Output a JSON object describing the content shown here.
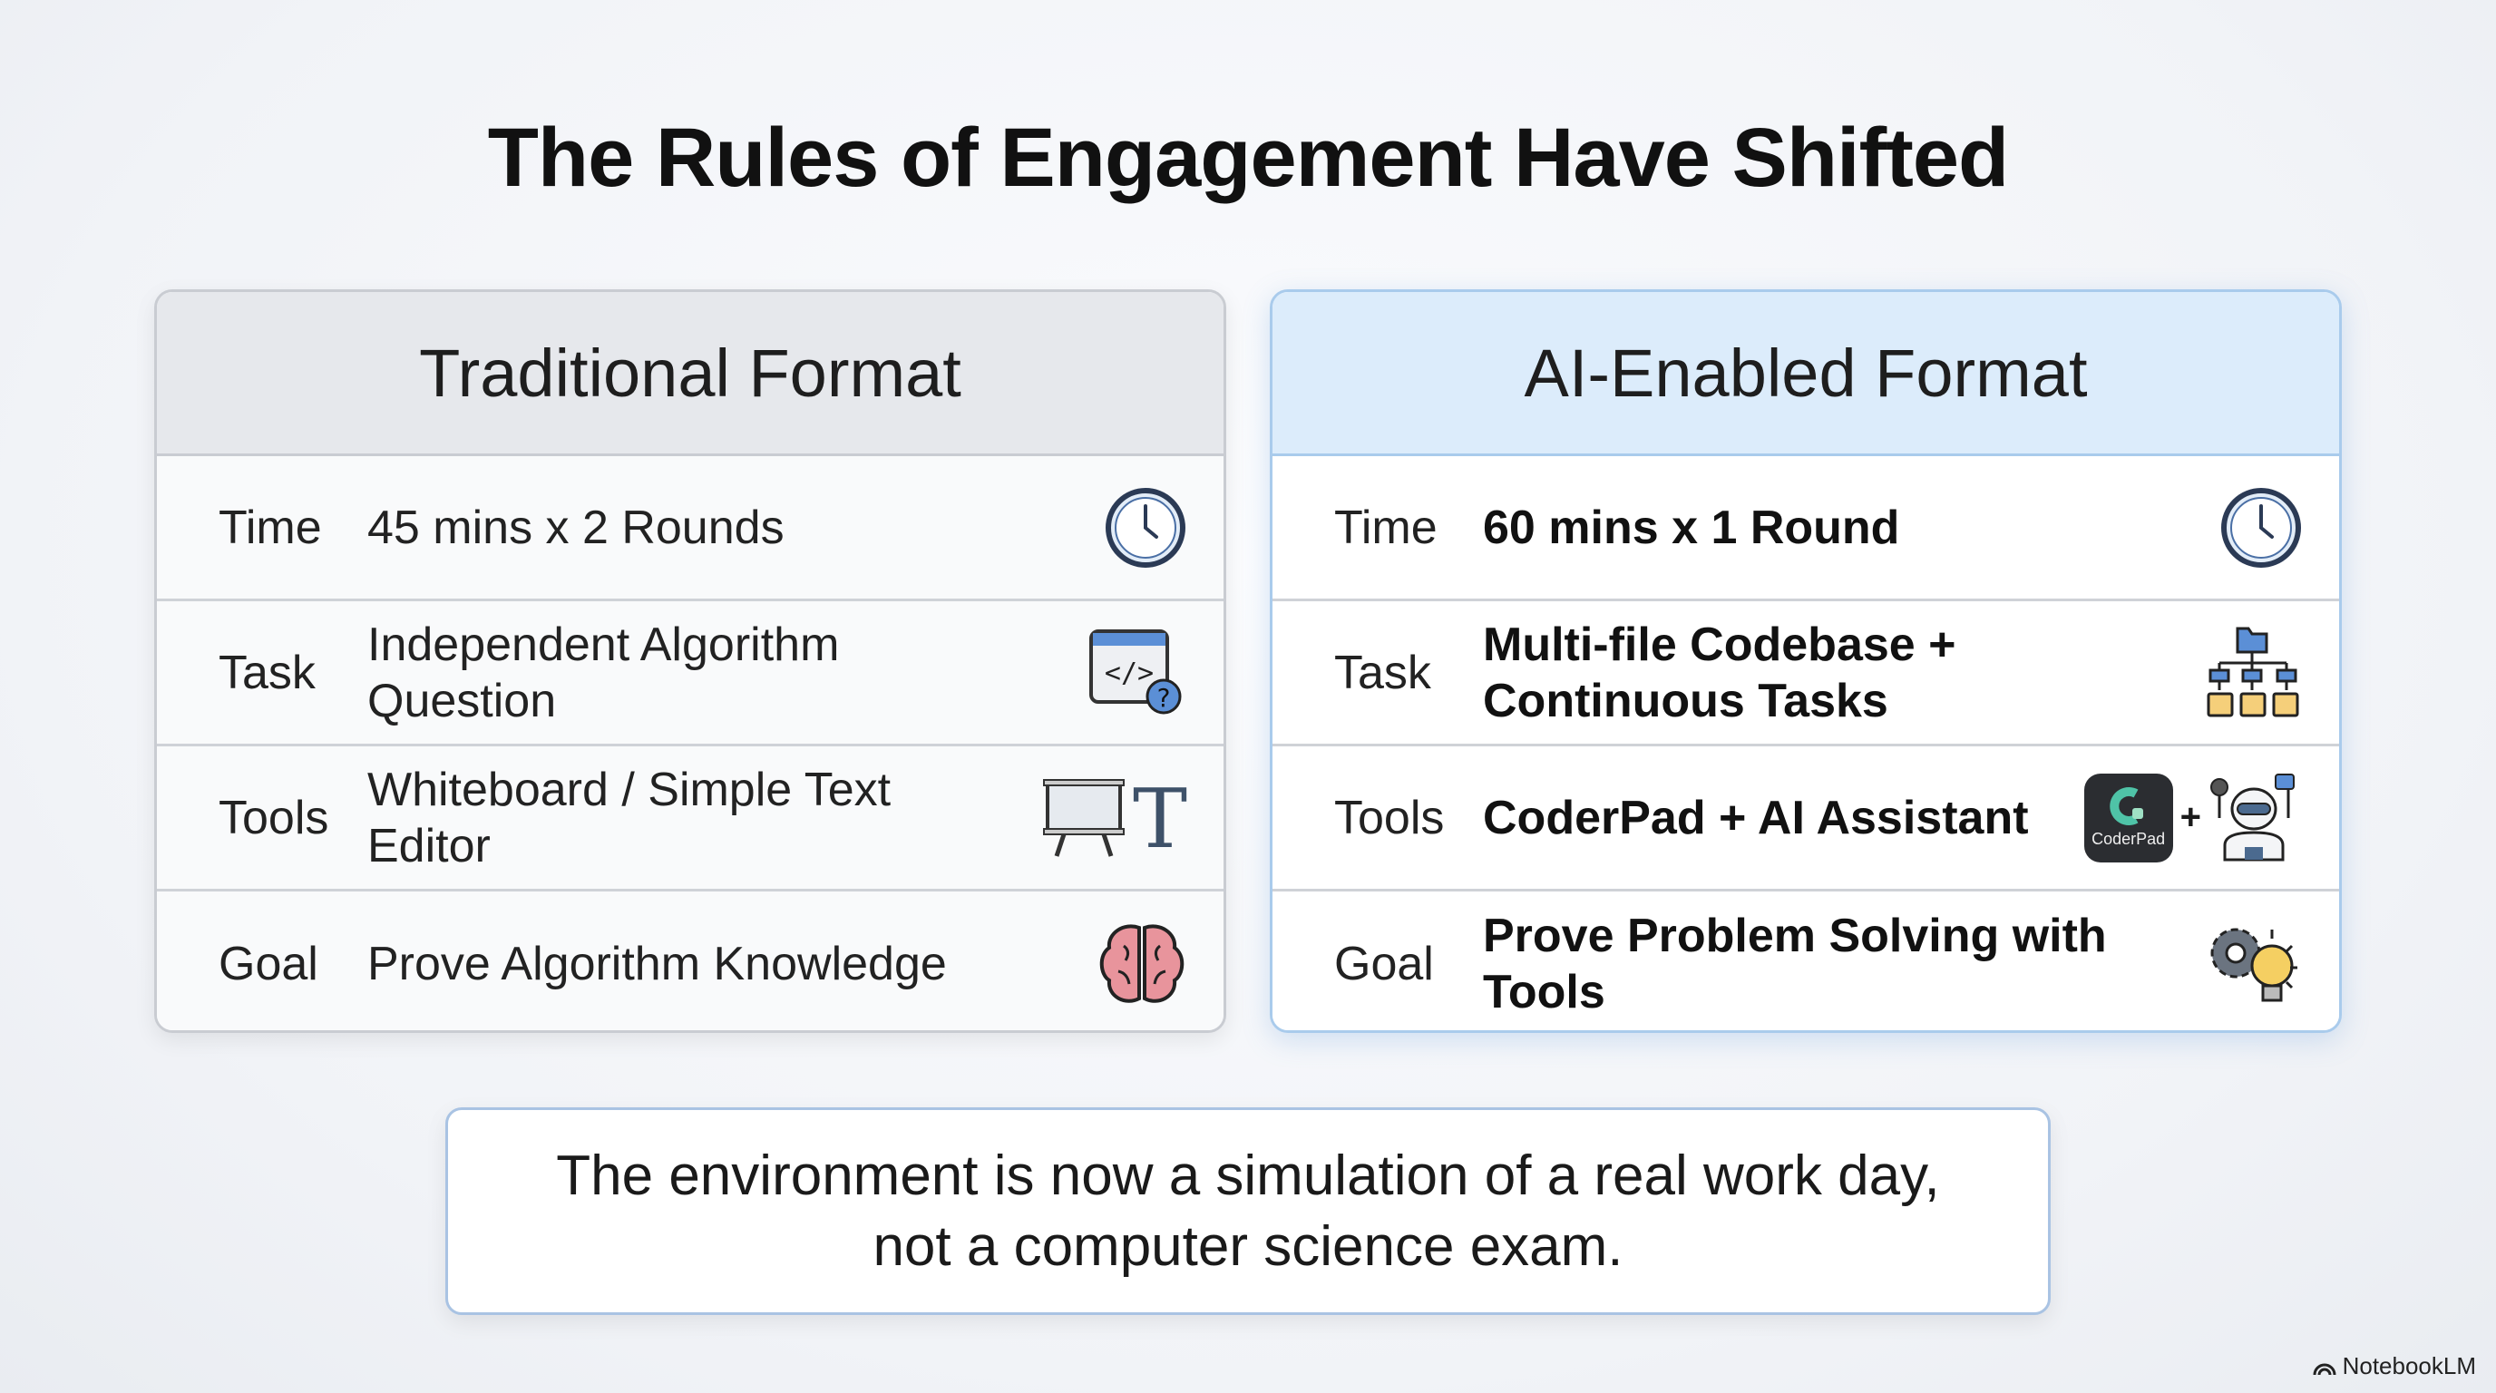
{
  "title": "The Rules of Engagement Have Shifted",
  "traditional": {
    "header": "Traditional Format",
    "rows": [
      {
        "label": "Time",
        "value": "45 mins x 2 Rounds",
        "icon": "clock-icon"
      },
      {
        "label": "Task",
        "value": "Independent Algorithm Question",
        "icon": "code-window-question-icon"
      },
      {
        "label": "Tools",
        "value": "Whiteboard / Simple Text Editor",
        "icon": "whiteboard-text-icon"
      },
      {
        "label": "Goal",
        "value": "Prove Algorithm Knowledge",
        "icon": "brain-icon"
      }
    ]
  },
  "ai": {
    "header": "AI-Enabled Format",
    "rows": [
      {
        "label": "Time",
        "value": "60 mins x 1 Round",
        "icon": "clock-icon"
      },
      {
        "label": "Task",
        "value": "Multi-file Codebase + Continuous Tasks",
        "icon": "folder-tree-icon"
      },
      {
        "label": "Tools",
        "value": "CoderPad + AI Assistant",
        "icon": "coderpad-robot-icon",
        "logo_text": "CoderPad"
      },
      {
        "label": "Goal",
        "value": "Prove Problem Solving with Tools",
        "icon": "gear-lightbulb-icon"
      }
    ]
  },
  "conclusion": {
    "line1": "The environment is now a simulation of a real work day,",
    "line2": "not a computer science exam."
  },
  "watermark": "NotebookLM",
  "colors": {
    "ai_accent": "#a9cbec",
    "ai_header": "#dcecfb",
    "traditional_header": "#e6e8ec"
  }
}
